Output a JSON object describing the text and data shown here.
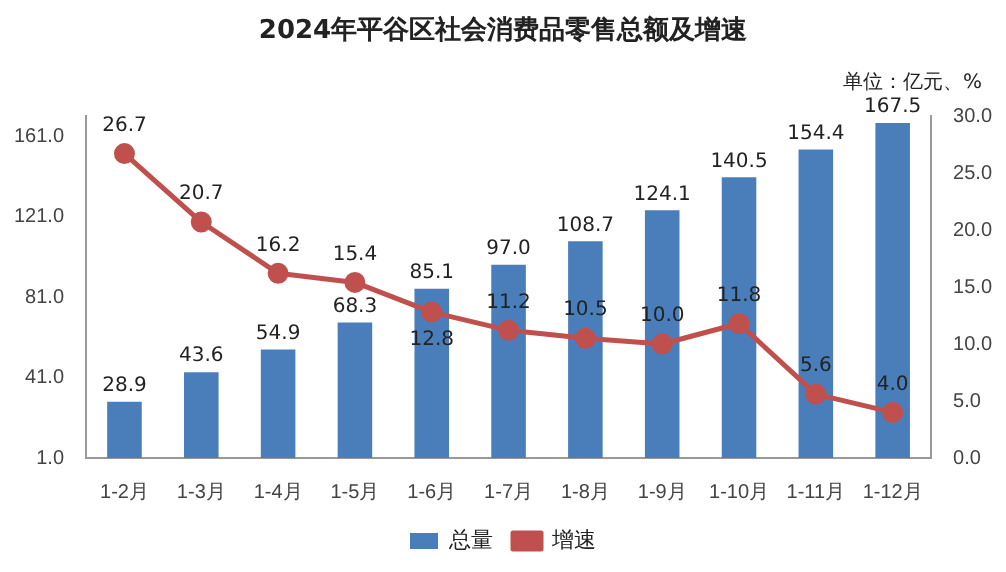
{
  "chart_data": {
    "type": "bar",
    "title": "2024年平谷区社会消费品零售总额及增速",
    "annotations": [
      "单位：亿元、%"
    ],
    "categories": [
      "1-2月",
      "1-3月",
      "1-4月",
      "1-5月",
      "1-6月",
      "1-7月",
      "1-8月",
      "1-9月",
      "1-10月",
      "1-11月",
      "1-12月"
    ],
    "series": [
      {
        "name": "总量",
        "color": "#4a7ebb",
        "values": [
          28.9,
          43.6,
          54.9,
          68.3,
          85.1,
          97.0,
          108.7,
          124.1,
          140.5,
          154.4,
          167.5
        ],
        "value_labels": [
          "28.9",
          "43.6",
          "54.9",
          "68.3",
          "85.1",
          "97.0",
          "108.7",
          "124.1",
          "140.5",
          "154.4",
          "167.5"
        ]
      },
      {
        "name": "增速",
        "type": "line",
        "axis": "y2",
        "color": "#c0504d",
        "values": [
          26.7,
          20.7,
          16.2,
          15.4,
          12.8,
          11.2,
          10.5,
          10.0,
          11.8,
          5.6,
          4.0
        ],
        "value_labels": [
          "26.7",
          "20.7",
          "16.2",
          "15.4",
          "12.8",
          "11.2",
          "10.5",
          "10.0",
          "11.8",
          "5.6",
          "4.0"
        ]
      }
    ],
    "ylim": [
      1,
      171
    ],
    "yticks": [
      {
        "value": 1,
        "label": "1.0"
      },
      {
        "value": 41,
        "label": "41.0"
      },
      {
        "value": 81,
        "label": "81.0"
      },
      {
        "value": 121,
        "label": "121.0"
      },
      {
        "value": 161,
        "label": "161.0"
      }
    ],
    "y2lim": [
      0,
      30
    ],
    "y2ticks": [
      {
        "value": 0,
        "label": "0.0"
      },
      {
        "value": 5,
        "label": "5.0"
      },
      {
        "value": 10,
        "label": "10.0"
      },
      {
        "value": 15,
        "label": "15.0"
      },
      {
        "value": 20,
        "label": "20.0"
      },
      {
        "value": 25,
        "label": "25.0"
      },
      {
        "value": 30,
        "label": "30.0"
      }
    ],
    "grid": false,
    "legend": "bottom",
    "marker": "circle",
    "line_style": "solid"
  }
}
